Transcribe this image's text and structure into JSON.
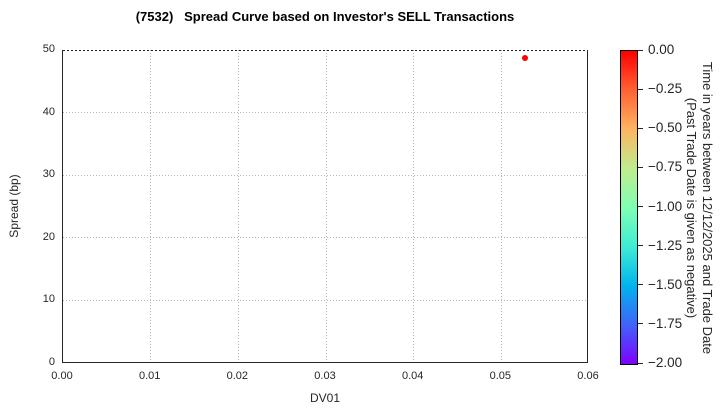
{
  "title": "(7532)   Spread Curve based on Investor's SELL Transactions",
  "chart_data": {
    "type": "scatter",
    "title": "(7532)   Spread Curve based on Investor's SELL Transactions",
    "xlabel": "DV01",
    "ylabel": "Spread (bp)",
    "xlim": [
      0.0,
      0.06
    ],
    "ylim": [
      0,
      50
    ],
    "grid": true,
    "x_ticks": {
      "values": [
        0.0,
        0.01,
        0.02,
        0.03,
        0.04,
        0.05,
        0.06
      ],
      "labels": [
        "0.00",
        "0.01",
        "0.02",
        "0.03",
        "0.04",
        "0.05",
        "0.06"
      ]
    },
    "y_ticks": {
      "values": [
        0,
        10,
        20,
        30,
        40,
        50
      ],
      "labels": [
        "0",
        "10",
        "20",
        "30",
        "40",
        "50"
      ]
    },
    "points": [
      {
        "x": 0.0527,
        "y": 48.8,
        "time_years": 0.0,
        "color": "#ff0000"
      }
    ],
    "colorbar": {
      "label_line1": "Time in years between 12/12/2025 and Trade Date",
      "label_line2": "(Past Trade Date is given as negative)",
      "tick_labels": [
        "0.00",
        "−0.25",
        "−0.50",
        "−0.75",
        "−1.00",
        "−1.25",
        "−1.50",
        "−1.75",
        "−2.00"
      ],
      "vmax": 0.0,
      "vmin": -2.0,
      "colormap": "rainbow",
      "gradient_stops": [
        "#ff0000",
        "#ff6232",
        "#ffb462",
        "#bfec8e",
        "#80ffb4",
        "#40ecd4",
        "#00b4ec",
        "#4062fa",
        "#8000ff"
      ]
    },
    "colors": {
      "point": "#ff0000",
      "grid": "#b5b5b5",
      "spine": "#262626"
    }
  }
}
